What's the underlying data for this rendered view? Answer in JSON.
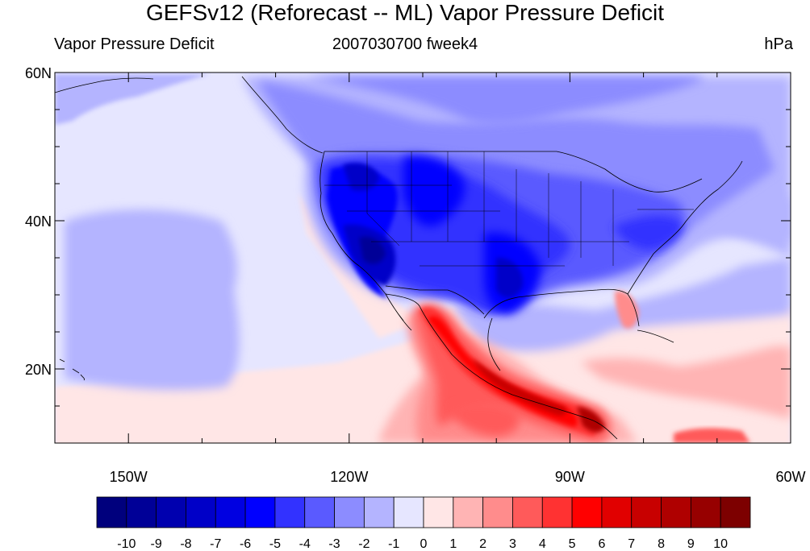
{
  "title": "GEFSv12 (Reforecast -- ML) Vapor Pressure Deficit",
  "left_label": "Vapor Pressure Deficit",
  "center_label": "2007030700 fweek4",
  "right_label": "hPa",
  "map": {
    "lon_range": [
      -160,
      -60
    ],
    "lat_range": [
      10,
      60
    ],
    "x_ticks": [
      {
        "lon": -150,
        "label": "150W"
      },
      {
        "lon": -120,
        "label": "120W"
      },
      {
        "lon": -90,
        "label": "90W"
      },
      {
        "lon": -60,
        "label": "60W"
      }
    ],
    "y_ticks": [
      {
        "lat": 60,
        "label": "60N"
      },
      {
        "lat": 40,
        "label": "40N"
      },
      {
        "lat": 20,
        "label": "20N"
      }
    ],
    "minor_lon_step": 10,
    "minor_lat_step": 5,
    "field": "vapor pressure deficit anomaly",
    "units": "hPa"
  },
  "colorbar": {
    "labels": [
      "-10",
      "-9",
      "-8",
      "-7",
      "-6",
      "-5",
      "-4",
      "-3",
      "-2",
      "-1",
      "0",
      "1",
      "2",
      "3",
      "4",
      "5",
      "6",
      "7",
      "8",
      "9",
      "10"
    ],
    "colors": [
      "#00007d",
      "#000097",
      "#0000af",
      "#0000c8",
      "#0000e1",
      "#0000ff",
      "#3232ff",
      "#5a5aff",
      "#8c8cff",
      "#b4b4ff",
      "#e6e6ff",
      "#ffe6e6",
      "#ffb4b4",
      "#ff8c8c",
      "#ff5a5a",
      "#ff3232",
      "#ff0000",
      "#e10000",
      "#c80000",
      "#af0000",
      "#970000",
      "#7d0000"
    ]
  }
}
